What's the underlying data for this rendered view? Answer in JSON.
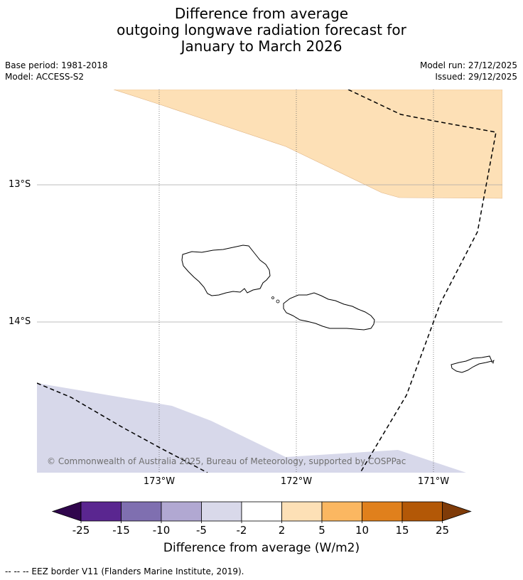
{
  "title": {
    "line1": "Difference from average",
    "line2": "outgoing longwave radiation forecast for",
    "line3": "January to March 2026"
  },
  "meta": {
    "base_period": "Base period: 1981-2018",
    "model": "Model: ACCESS-S2",
    "model_run": "Model run: 27/12/2025",
    "issued": "Issued: 29/12/2025"
  },
  "map": {
    "lat_labels": [
      "13°S",
      "14°S"
    ],
    "lon_labels": [
      "173°W",
      "172°W",
      "171°W"
    ],
    "copyright": "© Commonwealth of Australia 2025, Bureau of Meteorology, supported by COSPPac",
    "anomaly_classes": {
      "positive_2_to_5": "#fde0b6",
      "negative_5_to_2": "#d7d8ea"
    }
  },
  "colorbar": {
    "label": "Difference from average (W/m2)",
    "ticks": [
      "-25",
      "-15",
      "-10",
      "-5",
      "-2",
      "2",
      "5",
      "10",
      "15",
      "25"
    ],
    "colors": [
      "#5a2690",
      "#7f6fb0",
      "#b1a8d2",
      "#d9d9ea",
      "#ffffff",
      "#fde0b6",
      "#fbb761",
      "#e0801c",
      "#b35807"
    ],
    "extend_low_color": "#30064d",
    "extend_high_color": "#7f3b08"
  },
  "footer": {
    "legend": "--  --  -- EEZ border V11 (Flanders Marine Institute, 2019)."
  }
}
